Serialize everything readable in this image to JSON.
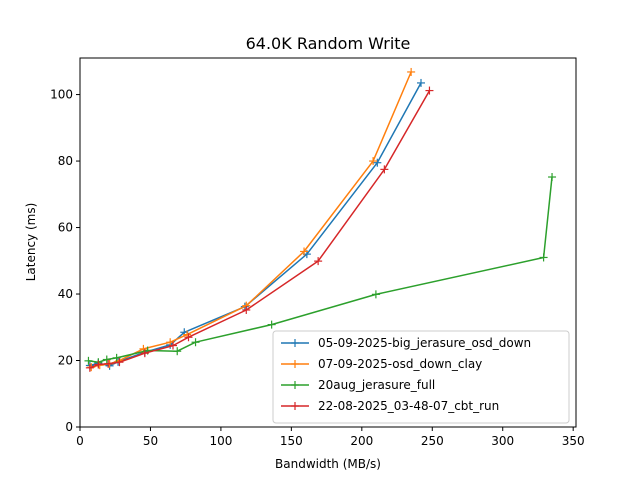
{
  "chart_data": {
    "type": "line",
    "title": "64.0K  Random Write",
    "xlabel": "Bandwidth (MB/s)",
    "ylabel": "Latency (ms)",
    "xlim": [
      0,
      352
    ],
    "ylim": [
      0,
      111
    ],
    "xticks": [
      0,
      50,
      100,
      150,
      200,
      250,
      300,
      350
    ],
    "yticks": [
      0,
      20,
      40,
      60,
      80,
      100
    ],
    "grid": false,
    "legend_position": "lower-right",
    "marker": "plus",
    "series": [
      {
        "name": "05-09-2025-big_jerasure_osd_down",
        "color": "#1f77b4",
        "points": [
          [
            7,
            18.5
          ],
          [
            13,
            19.2
          ],
          [
            21,
            18.4
          ],
          [
            27,
            19.6
          ],
          [
            46,
            22.5
          ],
          [
            64,
            24.7
          ],
          [
            74,
            28.5
          ],
          [
            117,
            36.2
          ],
          [
            161,
            52.0
          ],
          [
            211,
            79.5
          ],
          [
            242,
            103.5
          ]
        ]
      },
      {
        "name": "07-09-2025-osd_down_clay",
        "color": "#ff7f0e",
        "points": [
          [
            8,
            18.0
          ],
          [
            14,
            18.6
          ],
          [
            21,
            19.0
          ],
          [
            28,
            20.0
          ],
          [
            45,
            23.5
          ],
          [
            64,
            25.5
          ],
          [
            76,
            27.8
          ],
          [
            118,
            36.5
          ],
          [
            159,
            52.8
          ],
          [
            208,
            80.0
          ],
          [
            235,
            106.8
          ]
        ]
      },
      {
        "name": "20aug_jerasure_full",
        "color": "#2ca02c",
        "points": [
          [
            6,
            19.9
          ],
          [
            13,
            19.5
          ],
          [
            19,
            20.3
          ],
          [
            26,
            20.8
          ],
          [
            48,
            23.0
          ],
          [
            69,
            22.8
          ],
          [
            82,
            25.5
          ],
          [
            136,
            30.8
          ],
          [
            210,
            39.9
          ],
          [
            329,
            51.0
          ],
          [
            335,
            75.2
          ]
        ]
      },
      {
        "name": "22-08-2025_03-48-07_cbt_run",
        "color": "#d62728",
        "points": [
          [
            7,
            17.8
          ],
          [
            13,
            18.8
          ],
          [
            20,
            19.0
          ],
          [
            28,
            19.5
          ],
          [
            46,
            22.2
          ],
          [
            66,
            24.5
          ],
          [
            77,
            27.0
          ],
          [
            118,
            35.2
          ],
          [
            169,
            49.9
          ],
          [
            216,
            77.5
          ],
          [
            248,
            101.2
          ]
        ]
      }
    ]
  }
}
